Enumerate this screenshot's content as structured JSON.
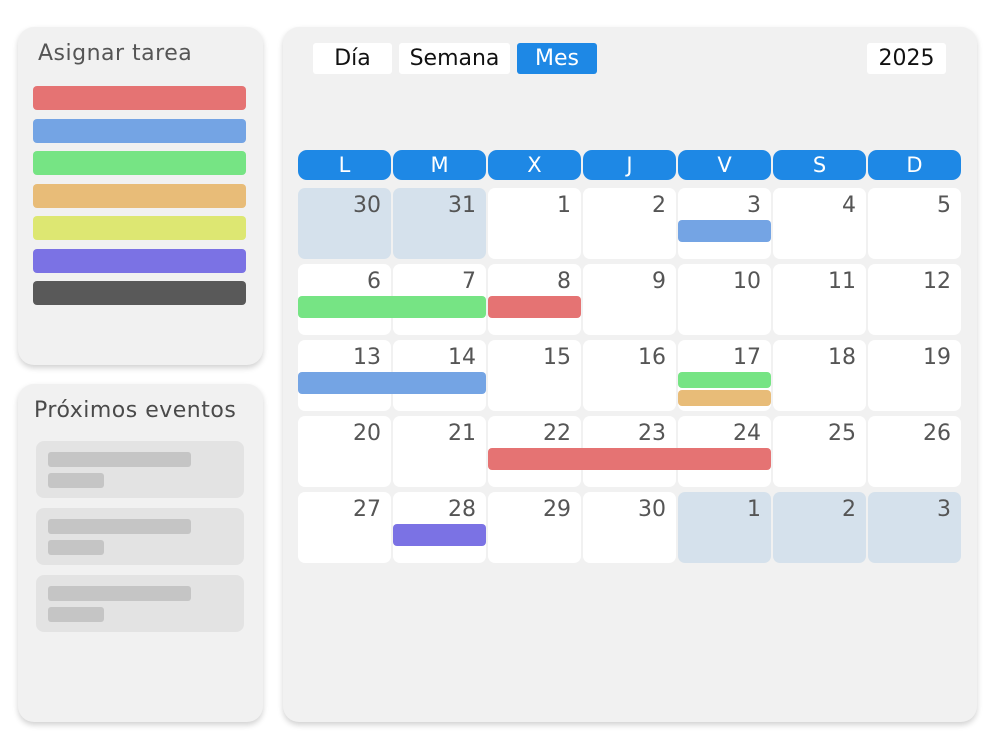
{
  "assign": {
    "title": "Asignar tarea",
    "colors": [
      "#e57373",
      "#74a4e4",
      "#76e484",
      "#e8bc78",
      "#dde772",
      "#7b72e4",
      "#595959"
    ]
  },
  "events": {
    "title": "Próximos eventos",
    "card_count": 3
  },
  "calendar": {
    "views": [
      {
        "label": "Día",
        "active": false
      },
      {
        "label": "Semana",
        "active": false
      },
      {
        "label": "Mes",
        "active": true
      }
    ],
    "year": "2025",
    "weekdays": [
      "L",
      "M",
      "X",
      "J",
      "V",
      "S",
      "D"
    ],
    "weeks": [
      [
        {
          "n": "30",
          "muted": true
        },
        {
          "n": "31",
          "muted": true
        },
        {
          "n": "1"
        },
        {
          "n": "2"
        },
        {
          "n": "3"
        },
        {
          "n": "4"
        },
        {
          "n": "5"
        }
      ],
      [
        {
          "n": "6"
        },
        {
          "n": "7"
        },
        {
          "n": "8"
        },
        {
          "n": "9"
        },
        {
          "n": "10"
        },
        {
          "n": "11"
        },
        {
          "n": "12"
        }
      ],
      [
        {
          "n": "13"
        },
        {
          "n": "14"
        },
        {
          "n": "15"
        },
        {
          "n": "16"
        },
        {
          "n": "17"
        },
        {
          "n": "18"
        },
        {
          "n": "19"
        }
      ],
      [
        {
          "n": "20"
        },
        {
          "n": "21"
        },
        {
          "n": "22"
        },
        {
          "n": "23"
        },
        {
          "n": "24"
        },
        {
          "n": "25"
        },
        {
          "n": "26"
        }
      ],
      [
        {
          "n": "27"
        },
        {
          "n": "28"
        },
        {
          "n": "29"
        },
        {
          "n": "30"
        },
        {
          "n": "1",
          "muted": true
        },
        {
          "n": "2",
          "muted": true
        },
        {
          "n": "3",
          "muted": true
        }
      ]
    ],
    "event_bars": [
      {
        "week": 0,
        "start_col": 4,
        "end_col": 4,
        "lane": 0,
        "color": "#74a4e4"
      },
      {
        "week": 1,
        "start_col": 0,
        "end_col": 1,
        "lane": 0,
        "color": "#76e484"
      },
      {
        "week": 1,
        "start_col": 2,
        "end_col": 2,
        "lane": 0,
        "color": "#e57373"
      },
      {
        "week": 2,
        "start_col": 0,
        "end_col": 1,
        "lane": 0,
        "color": "#74a4e4"
      },
      {
        "week": 2,
        "start_col": 4,
        "end_col": 4,
        "lane": 0,
        "color": "#76e484"
      },
      {
        "week": 2,
        "start_col": 4,
        "end_col": 4,
        "lane": 1,
        "color": "#e8bc78"
      },
      {
        "week": 3,
        "start_col": 2,
        "end_col": 4,
        "lane": 0,
        "color": "#e57373"
      },
      {
        "week": 4,
        "start_col": 1,
        "end_col": 1,
        "lane": 0,
        "color": "#7b72e4"
      }
    ]
  }
}
